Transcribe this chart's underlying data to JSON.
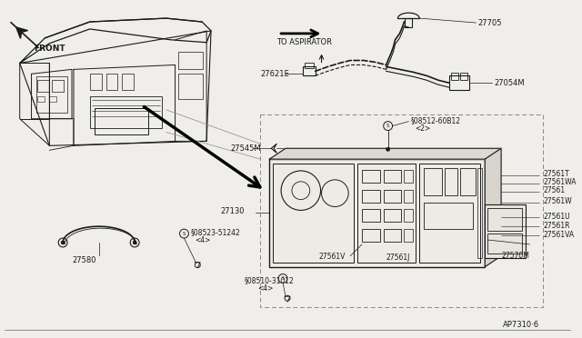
{
  "bg_color": "#f0eeea",
  "line_color": "#1a1a1a",
  "labels": {
    "front": "FRONT",
    "to_aspirator": "TO ASPIRATOR",
    "p27705": "27705",
    "p27054M": "27054M",
    "p27621E": "27621E",
    "p27545M": "27545M",
    "p08512": "§08512-60B12",
    "p08512c": "＜2＞",
    "p27130": "27130",
    "p27561T": "27561T",
    "p27561WA": "27561WA",
    "p27561": "27561",
    "p27561W": "27561W",
    "p27561V": "27561V",
    "p27561U": "27561U",
    "p27561R": "27561R",
    "p27561VA": "27561VA",
    "p27561J": "27561J",
    "p27570M": "27570M",
    "p27580": "27580",
    "p08523": "§08523-51242",
    "p08523c": "＜4＞",
    "p08510": "§08510-31012",
    "p08510c": "＜4＞",
    "diagram_id": "AP7310·6"
  }
}
